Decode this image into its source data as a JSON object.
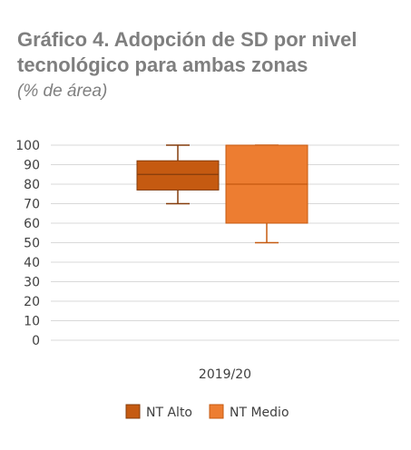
{
  "title_line1": "Gráfico 4. Adopción de SD por nivel",
  "title_line2": "tecnológico para ambas zonas",
  "subtitle": "(% de área)",
  "chart_data": {
    "type": "boxplot",
    "category": "2019/20",
    "ylim": [
      0,
      100
    ],
    "yticks": [
      0,
      10,
      20,
      30,
      40,
      50,
      60,
      70,
      80,
      90,
      100
    ],
    "grid": true,
    "legend_position": "bottom",
    "series": [
      {
        "name": "NT Alto",
        "min": 70,
        "q1": 77,
        "median": 85,
        "q3": 92,
        "max": 100,
        "color": "#c55a11",
        "stroke": "#843c0c"
      },
      {
        "name": "NT Medio",
        "min": 50,
        "q1": 60,
        "median": 80,
        "q3": 100,
        "max": 100,
        "color": "#ed7d31",
        "stroke": "#c55a11"
      }
    ]
  }
}
